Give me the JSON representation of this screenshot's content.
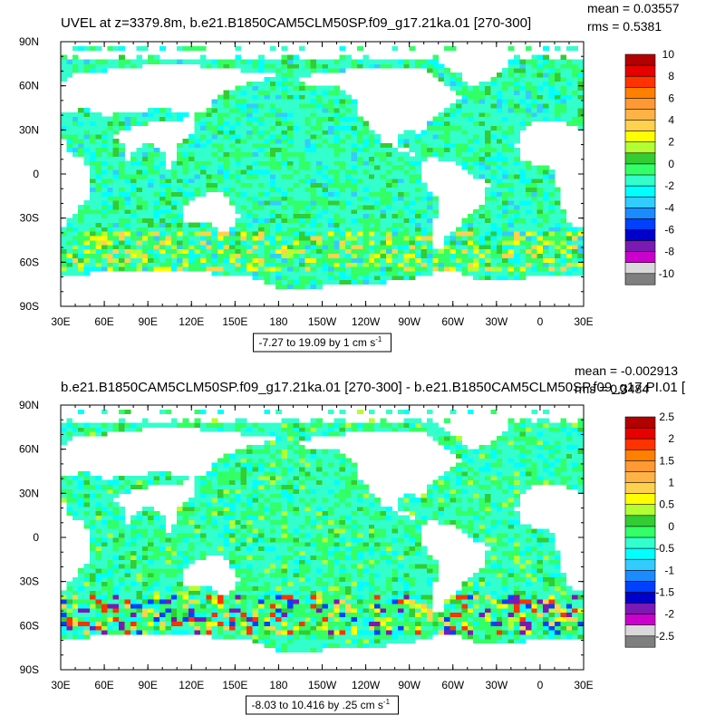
{
  "chart_data": [
    {
      "type": "heatmap",
      "title": "UVEL at z=3379.8m, b.e21.B1850CAM5CLM50SP.f09_g17.21ka.01 [270-300]",
      "stats": {
        "mean": "mean = 0.03557",
        "rms": "rms = 0.5381"
      },
      "x_tick_labels": [
        "30E",
        "60E",
        "90E",
        "120E",
        "150E",
        "180",
        "150W",
        "120W",
        "90W",
        "60W",
        "30W",
        "0",
        "30E"
      ],
      "y_tick_labels": [
        "90N",
        "60N",
        "30N",
        "0",
        "30S",
        "60S",
        "90S"
      ],
      "xlim_deg_east": [
        30,
        390
      ],
      "ylim_deg": [
        -90,
        90
      ],
      "contour_info": "-7.27 to 19.09 by 1 cm s",
      "contour_info_sup": "-1",
      "colorbar": {
        "labels": [
          "10",
          "8",
          "6",
          "4",
          "2",
          "0",
          "-2",
          "-4",
          "-6",
          "-8",
          "-10"
        ],
        "colors": [
          "#b30000",
          "#e60000",
          "#ff3300",
          "#ff7f00",
          "#ff9933",
          "#ffb347",
          "#ffd24d",
          "#ffff00",
          "#b3ff33",
          "#33cc33",
          "#33ff66",
          "#33ffcc",
          "#00ffff",
          "#33ccff",
          "#1a8cff",
          "#0040ff",
          "#0000cc",
          "#7a1ab3",
          "#cc00cc",
          "#d9d9d9",
          "#7f7f7f"
        ]
      }
    },
    {
      "type": "heatmap",
      "title": "b.e21.B1850CAM5CLM50SP.f09_g17.21ka.01 [270-300] - b.e21.B1850CAM5CLM50SP.f09_g17.PI.01 [",
      "stats": {
        "mean": "mean = -0.002913",
        "rms": "rms = 0.3484"
      },
      "x_tick_labels": [
        "30E",
        "60E",
        "90E",
        "120E",
        "150E",
        "180",
        "150W",
        "120W",
        "90W",
        "60W",
        "30W",
        "0",
        "30E"
      ],
      "y_tick_labels": [
        "90N",
        "60N",
        "30N",
        "0",
        "30S",
        "60S",
        "90S"
      ],
      "xlim_deg_east": [
        30,
        390
      ],
      "ylim_deg": [
        -90,
        90
      ],
      "contour_info": "-8.03 to 10.416 by .25 cm s",
      "contour_info_sup": "-1",
      "colorbar": {
        "labels": [
          "2.5",
          "2",
          "1.5",
          "1",
          "0.5",
          "0",
          "-0.5",
          "-1",
          "-1.5",
          "-2",
          "-2.5"
        ],
        "colors": [
          "#b30000",
          "#e60000",
          "#ff3300",
          "#ff7f00",
          "#ff9933",
          "#ffb347",
          "#ffd24d",
          "#ffff00",
          "#b3ff33",
          "#33cc33",
          "#33ff66",
          "#33ffcc",
          "#00ffff",
          "#33ccff",
          "#1a8cff",
          "#0040ff",
          "#0000cc",
          "#7a1ab3",
          "#cc00cc",
          "#d9d9d9",
          "#7f7f7f"
        ]
      }
    }
  ]
}
